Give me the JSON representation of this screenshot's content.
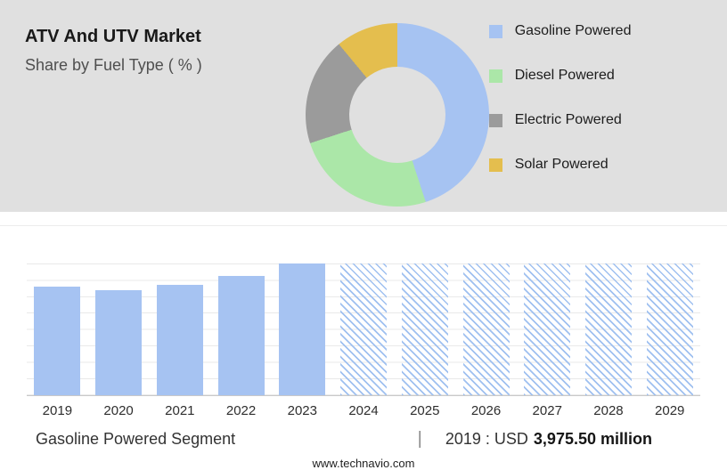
{
  "header": {
    "title": "ATV And UTV Market",
    "subtitle": "Share by Fuel Type ( % )"
  },
  "footer": {
    "segment_label": "Gasoline Powered Segment",
    "separator": "|",
    "value_prefix": "2019 : USD",
    "value_bold": "3,975.50 million",
    "website": "www.technavio.com"
  },
  "colors": {
    "panel_bg": "#e0e0e0",
    "gasoline_blue": "#a6c3f2",
    "diesel_green": "#abe7a8",
    "electric_gray": "#9b9b9b",
    "solar_yellow": "#e4be4e"
  },
  "chart_data": [
    {
      "type": "pie",
      "donut": true,
      "title": "ATV And UTV Market Share by Fuel Type ( % )",
      "labels": [
        "Gasoline Powered",
        "Diesel Powered",
        "Electric Powered",
        "Solar Powered"
      ],
      "values": [
        45,
        25,
        19,
        11
      ],
      "colors": [
        "#a6c3f2",
        "#abe7a8",
        "#9b9b9b",
        "#e4be4e"
      ],
      "legend_position": "right"
    },
    {
      "type": "bar",
      "categories": [
        "2019",
        "2020",
        "2021",
        "2022",
        "2023",
        "2024",
        "2025",
        "2026",
        "2027",
        "2028",
        "2029"
      ],
      "values": [
        3975.5,
        3845,
        4040,
        4372,
        4830,
        null,
        null,
        null,
        null,
        null,
        null
      ],
      "forecast_categories": [
        "2024",
        "2025",
        "2026",
        "2027",
        "2028",
        "2029"
      ],
      "forecast_style": "hatched",
      "bar_color": "#a6c3f2",
      "forecast_hatch_color": "#9fc0f0",
      "xlabel": "",
      "ylabel": "",
      "ylim": [
        0,
        4830
      ],
      "grid": true,
      "value_unit": "USD million",
      "labeled_value": {
        "year": "2019",
        "value": "3,975.50",
        "unit": "USD million"
      }
    }
  ]
}
